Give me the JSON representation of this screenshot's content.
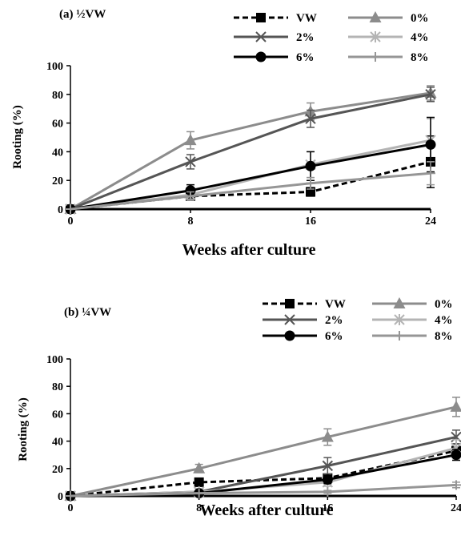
{
  "chart_data": [
    {
      "type": "line",
      "panel_label": "(a) ½VW",
      "xlabel": "Weeks after culture",
      "ylabel": "Rooting (%)",
      "x": [
        0,
        8,
        16,
        24
      ],
      "x_ticks": [
        "0",
        "8",
        "16",
        "24"
      ],
      "y_ticks": [
        "0",
        "20",
        "40",
        "60",
        "80",
        "100"
      ],
      "xlim": [
        0,
        24
      ],
      "ylim": [
        0,
        100
      ],
      "grid": false,
      "legend_position": "top",
      "series": [
        {
          "name": "VW",
          "values": [
            0,
            9,
            12,
            33
          ],
          "errors": [
            0,
            3,
            3,
            18
          ],
          "color": "#000000",
          "dash": true,
          "marker": "square"
        },
        {
          "name": "0%",
          "values": [
            0,
            48,
            68,
            81
          ],
          "errors": [
            0,
            6,
            6,
            5
          ],
          "color": "#8c8c8c",
          "dash": false,
          "marker": "triangle"
        },
        {
          "name": "2%",
          "values": [
            0,
            33,
            63,
            80
          ],
          "errors": [
            0,
            5,
            6,
            5
          ],
          "color": "#555555",
          "dash": false,
          "marker": "x"
        },
        {
          "name": "4%",
          "values": [
            0,
            10,
            31,
            48
          ],
          "errors": [
            0,
            3,
            9,
            15
          ],
          "color": "#b4b4b4",
          "dash": false,
          "marker": "star"
        },
        {
          "name": "6%",
          "values": [
            0,
            13,
            30,
            45
          ],
          "errors": [
            0,
            4,
            10,
            19
          ],
          "color": "#000000",
          "dash": false,
          "marker": "circle"
        },
        {
          "name": "8%",
          "values": [
            0,
            9,
            18,
            25
          ],
          "errors": [
            0,
            3,
            4,
            8
          ],
          "color": "#969696",
          "dash": false,
          "marker": "plus"
        }
      ]
    },
    {
      "type": "line",
      "panel_label": "(b) ¼VW",
      "xlabel": "Weeks after culture",
      "ylabel": "Rooting (%)",
      "x": [
        0,
        8,
        16,
        24
      ],
      "x_ticks": [
        "0",
        "8",
        "16",
        "24"
      ],
      "y_ticks": [
        "0",
        "20",
        "40",
        "60",
        "80",
        "100"
      ],
      "xlim": [
        0,
        24
      ],
      "ylim": [
        0,
        100
      ],
      "grid": false,
      "legend_position": "top",
      "series": [
        {
          "name": "VW",
          "values": [
            0,
            10,
            13,
            33
          ],
          "errors": [
            0,
            2,
            3,
            5
          ],
          "color": "#000000",
          "dash": true,
          "marker": "square"
        },
        {
          "name": "0%",
          "values": [
            0,
            20,
            43,
            65
          ],
          "errors": [
            0,
            3,
            6,
            7
          ],
          "color": "#8c8c8c",
          "dash": false,
          "marker": "triangle"
        },
        {
          "name": "2%",
          "values": [
            0,
            3,
            22,
            43
          ],
          "errors": [
            0,
            1,
            6,
            5
          ],
          "color": "#555555",
          "dash": false,
          "marker": "x"
        },
        {
          "name": "4%",
          "values": [
            0,
            3,
            10,
            35
          ],
          "errors": [
            0,
            1,
            3,
            6
          ],
          "color": "#b4b4b4",
          "dash": false,
          "marker": "star"
        },
        {
          "name": "6%",
          "values": [
            0,
            2,
            12,
            30
          ],
          "errors": [
            0,
            1,
            3,
            4
          ],
          "color": "#000000",
          "dash": false,
          "marker": "circle"
        },
        {
          "name": "8%",
          "values": [
            0,
            2,
            3,
            8
          ],
          "errors": [
            0,
            0,
            1,
            2
          ],
          "color": "#969696",
          "dash": false,
          "marker": "plus"
        }
      ]
    }
  ]
}
